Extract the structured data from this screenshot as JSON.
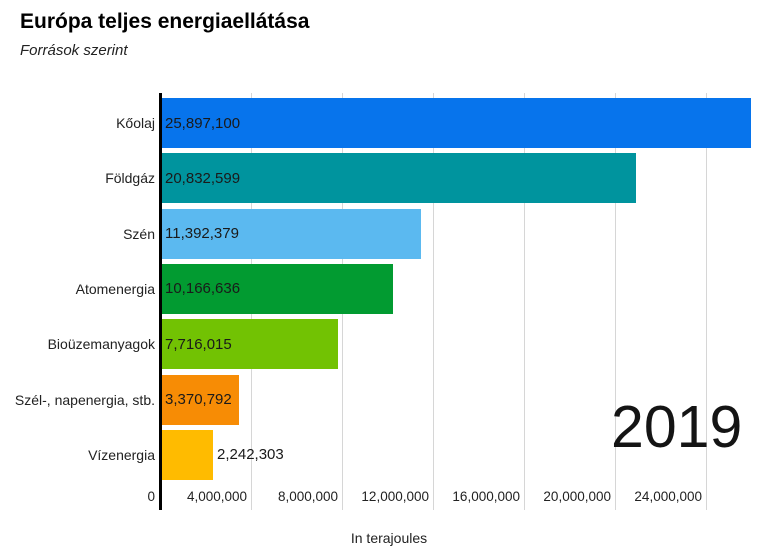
{
  "chart_data": {
    "type": "bar",
    "orientation": "horizontal",
    "title": "Európa teljes energiaellátása",
    "subtitle": "Források szerint",
    "xlabel": "In terajoules",
    "categories": [
      "Kőolaj",
      "Földgáz",
      "Szén",
      "Atomenergia",
      "Bioüzemanyagok",
      "Szél-, napenergia, stb.",
      "Vízenergia"
    ],
    "values": [
      25897100,
      20832599,
      11392379,
      10166636,
      7716015,
      3370792,
      2242303
    ],
    "value_labels": [
      "25,897,100",
      "20,832,599",
      "11,392,379",
      "10,166,636",
      "7,716,015",
      "3,370,792",
      "2,242,303"
    ],
    "bar_colors": [
      "#0774ec",
      "#00949e",
      "#5bb9f0",
      "#029b31",
      "#72c203",
      "#f78c05",
      "#ffbb00"
    ],
    "x_ticks": {
      "values": [
        0,
        4000000,
        8000000,
        12000000,
        16000000,
        20000000,
        24000000
      ],
      "labels": [
        "0",
        "4,000,000",
        "8,000,000",
        "12,000,000",
        "16,000,000",
        "20,000,000",
        "24,000,000"
      ]
    },
    "xlim": [
      0,
      27200000
    ],
    "grid": true,
    "legend_position": "none",
    "annotation_year": "2019",
    "axis_color": "#000000",
    "gridline_color": "#d6d6d6",
    "text_color": "#222222"
  }
}
